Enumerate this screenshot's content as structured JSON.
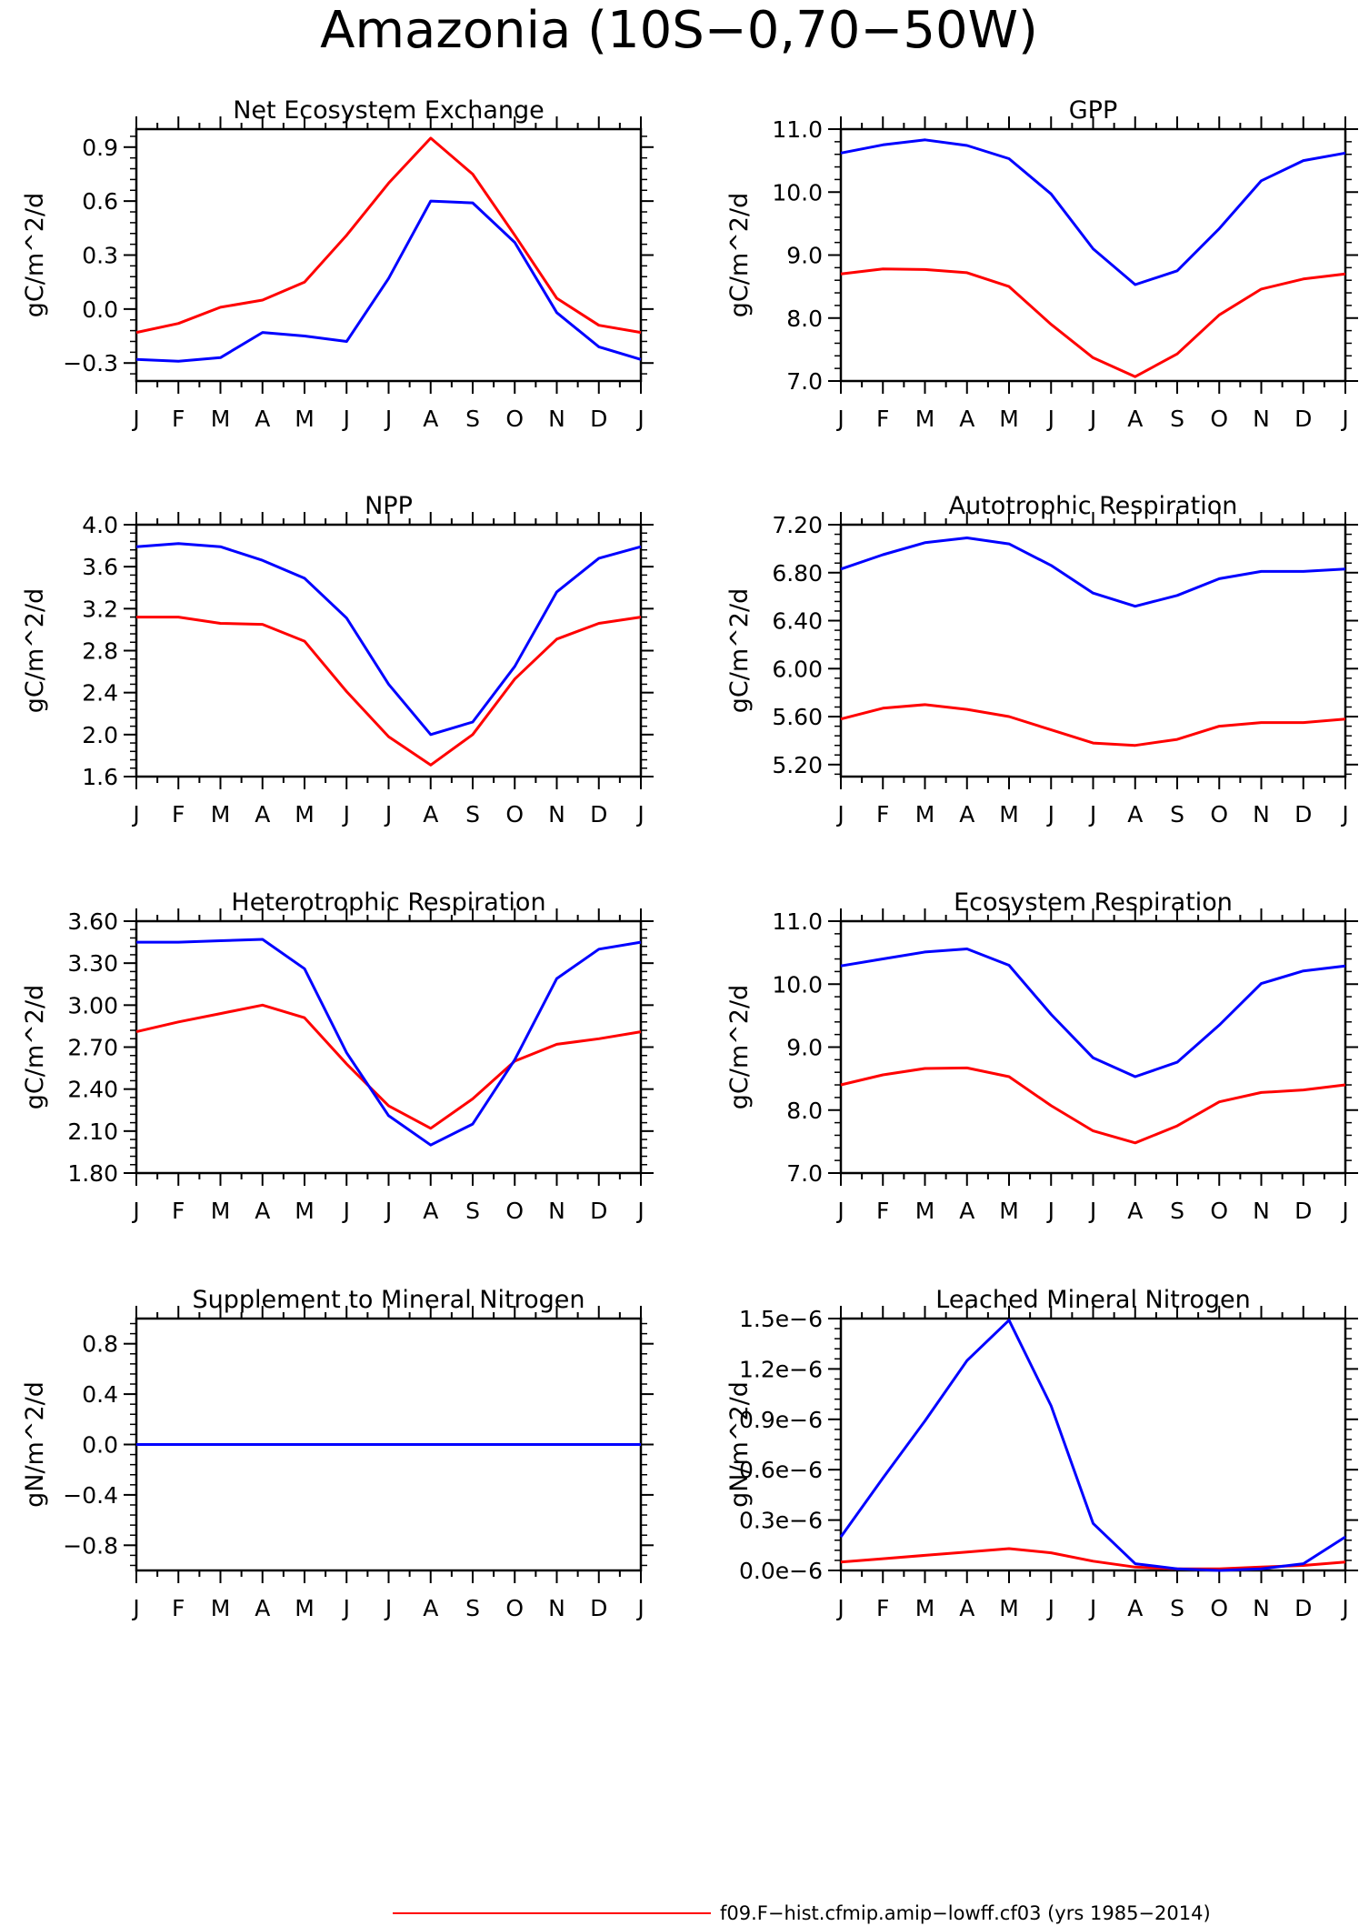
{
  "title": "Amazonia (10S−0,70−50W)",
  "legend": {
    "label": "f09.F−hist.cfmip.amip−lowff.cf03 (yrs 1985−2014)",
    "color": "#ff0000"
  },
  "chart_data": [
    {
      "type": "line",
      "title": "Net Ecosystem Exchange",
      "ylabel": "gC/m^2/d",
      "categories": [
        "J",
        "F",
        "M",
        "A",
        "M",
        "J",
        "J",
        "A",
        "S",
        "O",
        "N",
        "D",
        "J"
      ],
      "ylim": [
        -0.4,
        1.0
      ],
      "yticks": [
        -0.3,
        0.0,
        0.3,
        0.6,
        0.9
      ],
      "ytick_labels": [
        "−0.3",
        "0.0",
        "0.3",
        "0.6",
        "0.9"
      ],
      "series": [
        {
          "color": "#ff0000",
          "values": [
            -0.13,
            -0.08,
            0.01,
            0.05,
            0.15,
            0.41,
            0.7,
            0.95,
            0.75,
            0.41,
            0.06,
            -0.09,
            -0.13
          ]
        },
        {
          "color": "#0000ff",
          "values": [
            -0.28,
            -0.29,
            -0.27,
            -0.13,
            -0.15,
            -0.18,
            0.17,
            0.6,
            0.59,
            0.37,
            -0.02,
            -0.21,
            -0.28
          ]
        }
      ]
    },
    {
      "type": "line",
      "title": "GPP",
      "ylabel": "gC/m^2/d",
      "categories": [
        "J",
        "F",
        "M",
        "A",
        "M",
        "J",
        "J",
        "A",
        "S",
        "O",
        "N",
        "D",
        "J"
      ],
      "ylim": [
        7.0,
        11.0
      ],
      "yticks": [
        7.0,
        8.0,
        9.0,
        10.0,
        11.0
      ],
      "ytick_labels": [
        "7.0",
        "8.0",
        "9.0",
        "10.0",
        "11.0"
      ],
      "series": [
        {
          "color": "#ff0000",
          "values": [
            8.7,
            8.78,
            8.77,
            8.72,
            8.5,
            7.9,
            7.37,
            7.07,
            7.43,
            8.05,
            8.46,
            8.62,
            8.7
          ]
        },
        {
          "color": "#0000ff",
          "values": [
            10.62,
            10.75,
            10.83,
            10.74,
            10.53,
            9.97,
            9.1,
            8.53,
            8.75,
            9.42,
            10.18,
            10.5,
            10.62
          ]
        }
      ]
    },
    {
      "type": "line",
      "title": "NPP",
      "ylabel": "gC/m^2/d",
      "categories": [
        "J",
        "F",
        "M",
        "A",
        "M",
        "J",
        "J",
        "A",
        "S",
        "O",
        "N",
        "D",
        "J"
      ],
      "ylim": [
        1.6,
        4.0
      ],
      "yticks": [
        1.6,
        2.0,
        2.4,
        2.8,
        3.2,
        3.6,
        4.0
      ],
      "ytick_labels": [
        "1.6",
        "2.0",
        "2.4",
        "2.8",
        "3.2",
        "3.6",
        "4.0"
      ],
      "series": [
        {
          "color": "#ff0000",
          "values": [
            3.12,
            3.12,
            3.06,
            3.05,
            2.89,
            2.41,
            1.98,
            1.71,
            2.0,
            2.53,
            2.91,
            3.06,
            3.12
          ]
        },
        {
          "color": "#0000ff",
          "values": [
            3.79,
            3.82,
            3.79,
            3.66,
            3.49,
            3.11,
            2.48,
            2.0,
            2.12,
            2.65,
            3.36,
            3.68,
            3.79
          ]
        }
      ]
    },
    {
      "type": "line",
      "title": "Autotrophic Respiration",
      "ylabel": "gC/m^2/d",
      "categories": [
        "J",
        "F",
        "M",
        "A",
        "M",
        "J",
        "J",
        "A",
        "S",
        "O",
        "N",
        "D",
        "J"
      ],
      "ylim": [
        5.1,
        7.2
      ],
      "yticks": [
        5.2,
        5.6,
        6.0,
        6.4,
        6.8,
        7.2
      ],
      "ytick_labels": [
        "5.20",
        "5.60",
        "6.00",
        "6.40",
        "6.80",
        "7.20"
      ],
      "series": [
        {
          "color": "#ff0000",
          "values": [
            5.58,
            5.67,
            5.7,
            5.66,
            5.6,
            5.49,
            5.38,
            5.36,
            5.41,
            5.52,
            5.55,
            5.55,
            5.58
          ]
        },
        {
          "color": "#0000ff",
          "values": [
            6.83,
            6.95,
            7.05,
            7.09,
            7.04,
            6.86,
            6.63,
            6.52,
            6.61,
            6.75,
            6.81,
            6.81,
            6.83
          ]
        }
      ]
    },
    {
      "type": "line",
      "title": "Heterotrophic Respiration",
      "ylabel": "gC/m^2/d",
      "categories": [
        "J",
        "F",
        "M",
        "A",
        "M",
        "J",
        "J",
        "A",
        "S",
        "O",
        "N",
        "D",
        "J"
      ],
      "ylim": [
        1.8,
        3.6
      ],
      "yticks": [
        1.8,
        2.1,
        2.4,
        2.7,
        3.0,
        3.3,
        3.6
      ],
      "ytick_labels": [
        "1.80",
        "2.10",
        "2.40",
        "2.70",
        "3.00",
        "3.30",
        "3.60"
      ],
      "series": [
        {
          "color": "#ff0000",
          "values": [
            2.81,
            2.88,
            2.94,
            3.0,
            2.91,
            2.58,
            2.28,
            2.12,
            2.33,
            2.6,
            2.72,
            2.76,
            2.81
          ]
        },
        {
          "color": "#0000ff",
          "values": [
            3.45,
            3.45,
            3.46,
            3.47,
            3.26,
            2.66,
            2.21,
            2.0,
            2.15,
            2.61,
            3.19,
            3.4,
            3.45
          ]
        }
      ]
    },
    {
      "type": "line",
      "title": "Ecosystem Respiration",
      "ylabel": "gC/m^2/d",
      "categories": [
        "J",
        "F",
        "M",
        "A",
        "M",
        "J",
        "J",
        "A",
        "S",
        "O",
        "N",
        "D",
        "J"
      ],
      "ylim": [
        7.0,
        11.0
      ],
      "yticks": [
        7.0,
        8.0,
        9.0,
        10.0,
        11.0
      ],
      "ytick_labels": [
        "7.0",
        "8.0",
        "9.0",
        "10.0",
        "11.0"
      ],
      "series": [
        {
          "color": "#ff0000",
          "values": [
            8.4,
            8.56,
            8.66,
            8.67,
            8.53,
            8.07,
            7.67,
            7.48,
            7.75,
            8.13,
            8.28,
            8.32,
            8.4
          ]
        },
        {
          "color": "#0000ff",
          "values": [
            10.29,
            10.4,
            10.51,
            10.56,
            10.3,
            9.52,
            8.83,
            8.53,
            8.76,
            9.35,
            10.01,
            10.21,
            10.29
          ]
        }
      ]
    },
    {
      "type": "line",
      "title": "Supplement to Mineral Nitrogen",
      "ylabel": "gN/m^2/d",
      "categories": [
        "J",
        "F",
        "M",
        "A",
        "M",
        "J",
        "J",
        "A",
        "S",
        "O",
        "N",
        "D",
        "J"
      ],
      "ylim": [
        -1.0,
        1.0
      ],
      "yticks": [
        -0.8,
        -0.4,
        0.0,
        0.4,
        0.8
      ],
      "ytick_labels": [
        "−0.8",
        "−0.4",
        "0.0",
        "0.4",
        "0.8"
      ],
      "series": [
        {
          "color": "#ff0000",
          "values": [
            0,
            0,
            0,
            0,
            0,
            0,
            0,
            0,
            0,
            0,
            0,
            0,
            0
          ]
        },
        {
          "color": "#0000ff",
          "values": [
            0,
            0,
            0,
            0,
            0,
            0,
            0,
            0,
            0,
            0,
            0,
            0,
            0
          ]
        }
      ]
    },
    {
      "type": "line",
      "title": "Leached Mineral Nitrogen",
      "ylabel": "gN/m^2/d",
      "categories": [
        "J",
        "F",
        "M",
        "A",
        "M",
        "J",
        "J",
        "A",
        "S",
        "O",
        "N",
        "D",
        "J"
      ],
      "ylim": [
        0,
        1.5e-06
      ],
      "yticks": [
        0,
        3e-07,
        6e-07,
        9e-07,
        1.2e-06,
        1.5e-06
      ],
      "ytick_labels": [
        "0.0e−6",
        "0.3e−6",
        "0.6e−6",
        "0.9e−6",
        "1.2e−6",
        "1.5e−6"
      ],
      "series": [
        {
          "color": "#ff0000",
          "values": [
            5e-08,
            7e-08,
            9e-08,
            1.1e-07,
            1.3e-07,
            1.05e-07,
            5.5e-08,
            2e-08,
            1e-08,
            1e-08,
            2e-08,
            3e-08,
            5e-08
          ]
        },
        {
          "color": "#0000ff",
          "values": [
            2e-07,
            5.5e-07,
            8.9e-07,
            1.25e-06,
            1.49e-06,
            9.8e-07,
            2.8e-07,
            4e-08,
            1e-08,
            0,
            1e-08,
            4e-08,
            2e-07
          ]
        }
      ]
    }
  ]
}
